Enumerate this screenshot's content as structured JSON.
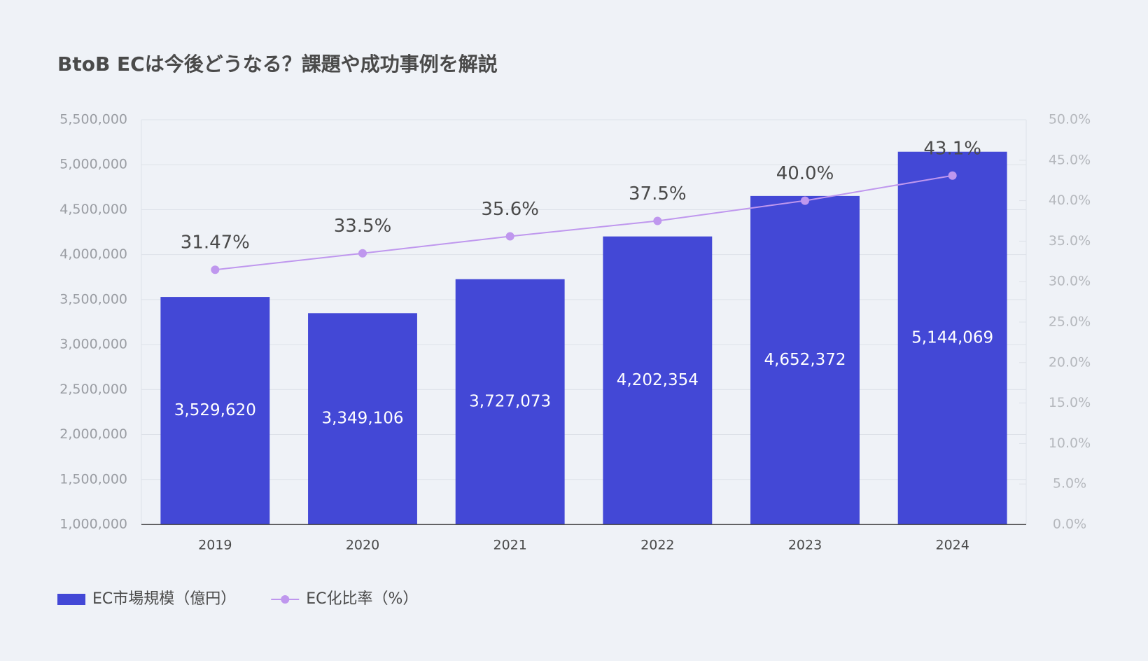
{
  "chart_data": {
    "type": "bar",
    "title": "BtoB ECは今後どうなる？課題や成功事例を解説",
    "categories": [
      "2019",
      "2020",
      "2021",
      "2022",
      "2023",
      "2024"
    ],
    "series": [
      {
        "name": "EC市場規模（億円）",
        "color": "#4348d6",
        "values": [
          3529620,
          3349106,
          3727073,
          4202354,
          4652372,
          5144069
        ],
        "value_labels": [
          "3,529,620",
          "3,349,106",
          "3,727,073",
          "4,202,354",
          "4,652,372",
          "5,144,069"
        ]
      },
      {
        "name": "EC化比率（%）",
        "type": "line",
        "axis": "y2",
        "color": "#bf97ee",
        "values": [
          31.47,
          33.5,
          35.6,
          37.5,
          40.0,
          43.1
        ],
        "value_labels": [
          "31.47%",
          "33.5%",
          "35.6%",
          "37.5%",
          "40.0%",
          "43.1%"
        ]
      }
    ],
    "ylim": [
      1000000,
      5500000
    ],
    "yticks": [
      {
        "value": 1000000,
        "label": "1,000,000"
      },
      {
        "value": 1500000,
        "label": "1,500,000"
      },
      {
        "value": 2000000,
        "label": "2,000,000"
      },
      {
        "value": 2500000,
        "label": "2,500,000"
      },
      {
        "value": 3000000,
        "label": "3,000,000"
      },
      {
        "value": 3500000,
        "label": "3,500,000"
      },
      {
        "value": 4000000,
        "label": "4,000,000"
      },
      {
        "value": 4500000,
        "label": "4,500,000"
      },
      {
        "value": 5000000,
        "label": "5,000,000"
      },
      {
        "value": 5500000,
        "label": "5,500,000"
      }
    ],
    "y2lim": [
      0,
      50
    ],
    "y2ticks": [
      {
        "value": 0,
        "label": "0.0%"
      },
      {
        "value": 5,
        "label": "5.0%"
      },
      {
        "value": 10,
        "label": "10.0%"
      },
      {
        "value": 15,
        "label": "15.0%"
      },
      {
        "value": 20,
        "label": "20.0%"
      },
      {
        "value": 25,
        "label": "25.0%"
      },
      {
        "value": 30,
        "label": "30.0%"
      },
      {
        "value": 35,
        "label": "35.0%"
      },
      {
        "value": 40,
        "label": "40.0%"
      },
      {
        "value": 45,
        "label": "45.0%"
      },
      {
        "value": 50,
        "label": "50.0%"
      }
    ],
    "grid": true,
    "legend": "bottom-left"
  }
}
